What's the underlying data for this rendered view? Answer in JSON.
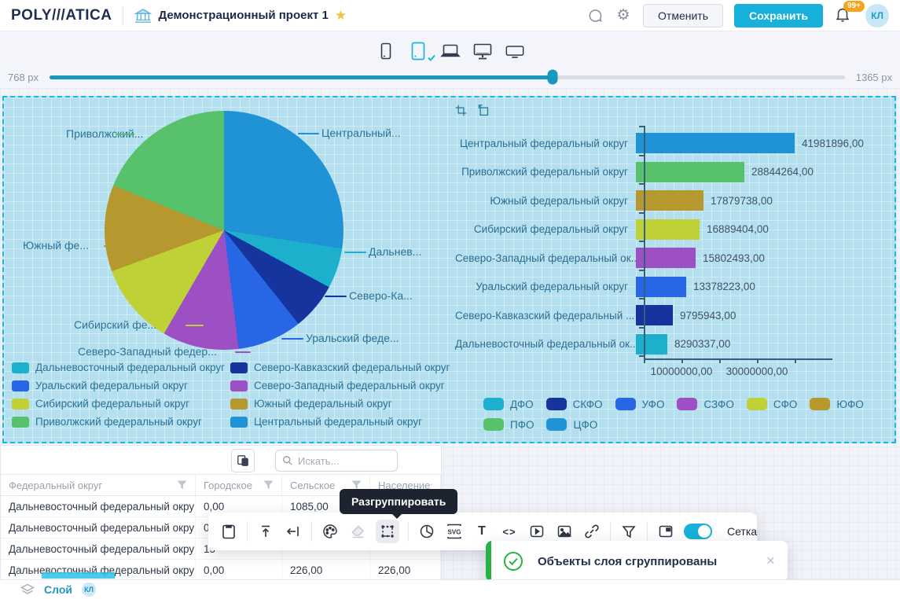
{
  "header": {
    "logo": "POLY///ATICA",
    "project_title": "Демонстрационный проект 1",
    "cancel_label": "Отменить",
    "save_label": "Сохранить",
    "notification_badge": "99+",
    "avatar_initials": "КЛ"
  },
  "icons": {
    "gear": "⚙",
    "star": "★",
    "close": "×"
  },
  "subheader": {
    "slider_min_label": "768 px",
    "slider_max_label": "1365 px",
    "slider_pct": 63.3
  },
  "chart_data": [
    {
      "type": "pie",
      "slices": [
        {
          "label": "Центральный федеральный округ",
          "callout": "Центральный...",
          "value": 41981896,
          "color": "#2093d6"
        },
        {
          "label": "Дальневосточный федеральный округ",
          "callout": "Дальнев...",
          "value": 8290337,
          "color": "#1db0cd"
        },
        {
          "label": "Северо-Кавказский федеральный округ",
          "callout": "Северо-Ка...",
          "value": 9795943,
          "color": "#16349e"
        },
        {
          "label": "Уральский федеральный округ",
          "callout": "Уральский феде...",
          "value": 13378223,
          "color": "#2767e6"
        },
        {
          "label": "Северо-Западный федеральный округ",
          "callout": "Северо-Западный федер...",
          "value": 15802493,
          "color": "#9c50c4"
        },
        {
          "label": "Сибирский федеральный округ",
          "callout": "Сибирский фе...",
          "value": 16889404,
          "color": "#c0d138"
        },
        {
          "label": "Южный федеральный округ",
          "callout": "Южный фе...",
          "value": 17879738,
          "color": "#b5992f"
        },
        {
          "label": "Приволжский федеральный округ",
          "callout": "Приволжский...",
          "value": 28844264,
          "color": "#57c16c"
        }
      ],
      "legend": [
        {
          "label": "Дальневосточный федеральный округ",
          "color": "#1db0cd"
        },
        {
          "label": "Северо-Кавказский федеральный округ",
          "color": "#16349e"
        },
        {
          "label": "Уральский федеральный округ",
          "color": "#2767e6"
        },
        {
          "label": "Северо-Западный федеральный округ",
          "color": "#9c50c4"
        },
        {
          "label": "Сибирский федеральный округ",
          "color": "#c0d138"
        },
        {
          "label": "Южный федеральный округ",
          "color": "#b5992f"
        },
        {
          "label": "Приволжский федеральный округ",
          "color": "#57c16c"
        },
        {
          "label": "Центральный федеральный округ",
          "color": "#2093d6"
        }
      ]
    },
    {
      "type": "bar",
      "bars": [
        {
          "label": "Центральный федеральный округ",
          "value": 41981896,
          "value_label": "41981896,00",
          "color": "#2093d6"
        },
        {
          "label": "Приволжский федеральный округ",
          "value": 28844264,
          "value_label": "28844264,00",
          "color": "#57c16c"
        },
        {
          "label": "Южный федеральный округ",
          "value": 17879738,
          "value_label": "17879738,00",
          "color": "#b5992f"
        },
        {
          "label": "Сибирский федеральный округ",
          "value": 16889404,
          "value_label": "16889404,00",
          "color": "#c0d138"
        },
        {
          "label": "Северо-Западный федеральный ок...",
          "value": 15802493,
          "value_label": "15802493,00",
          "color": "#9c50c4"
        },
        {
          "label": "Уральский федеральный округ",
          "value": 13378223,
          "value_label": "13378223,00",
          "color": "#2767e6"
        },
        {
          "label": "Северо-Кавказский федеральный ...",
          "value": 9795943,
          "value_label": "9795943,00",
          "color": "#16349e"
        },
        {
          "label": "Дальневосточный федеральный ок...",
          "value": 8290337,
          "value_label": "8290337,00",
          "color": "#1db0cd"
        }
      ],
      "xlim": [
        0,
        50000000
      ],
      "tick_step": 10000000,
      "xticks": [
        {
          "value": 10000000,
          "label": "10000000,00"
        },
        {
          "value": 30000000,
          "label": "30000000,00"
        }
      ],
      "legend": [
        {
          "label": "ДФО",
          "color": "#1db0cd"
        },
        {
          "label": "СКФО",
          "color": "#16349e"
        },
        {
          "label": "УФО",
          "color": "#2767e6"
        },
        {
          "label": "СЗФО",
          "color": "#9c50c4"
        },
        {
          "label": "СФО",
          "color": "#c0d138"
        },
        {
          "label": "ЮФО",
          "color": "#b5992f"
        },
        {
          "label": "ПФО",
          "color": "#57c16c"
        },
        {
          "label": "ЦФО",
          "color": "#2093d6"
        }
      ]
    }
  ],
  "table": {
    "search_placeholder": "Искать...",
    "columns": [
      "Федеральный округ",
      "Городское",
      "Сельское",
      "Население"
    ],
    "rows": [
      [
        "Дальневосточный федеральный округ",
        "0,00",
        "1085,00",
        ""
      ],
      [
        "Дальневосточный федеральный округ",
        "0,00",
        "",
        ""
      ],
      [
        "Дальневосточный федеральный округ",
        "15",
        "",
        ""
      ],
      [
        "Дальневосточный федеральный округ",
        "0,00",
        "226,00",
        "226,00"
      ]
    ]
  },
  "floating_toolbar": {
    "grid_toggle_label": "Сетка",
    "svg_label": "SVG",
    "text_label": "T",
    "code_label": "<>"
  },
  "tooltip": {
    "text": "Разгруппировать"
  },
  "toast": {
    "message": "Объекты слоя сгруппированы"
  },
  "layerbar": {
    "label": "Слой",
    "badge": "КЛ"
  }
}
